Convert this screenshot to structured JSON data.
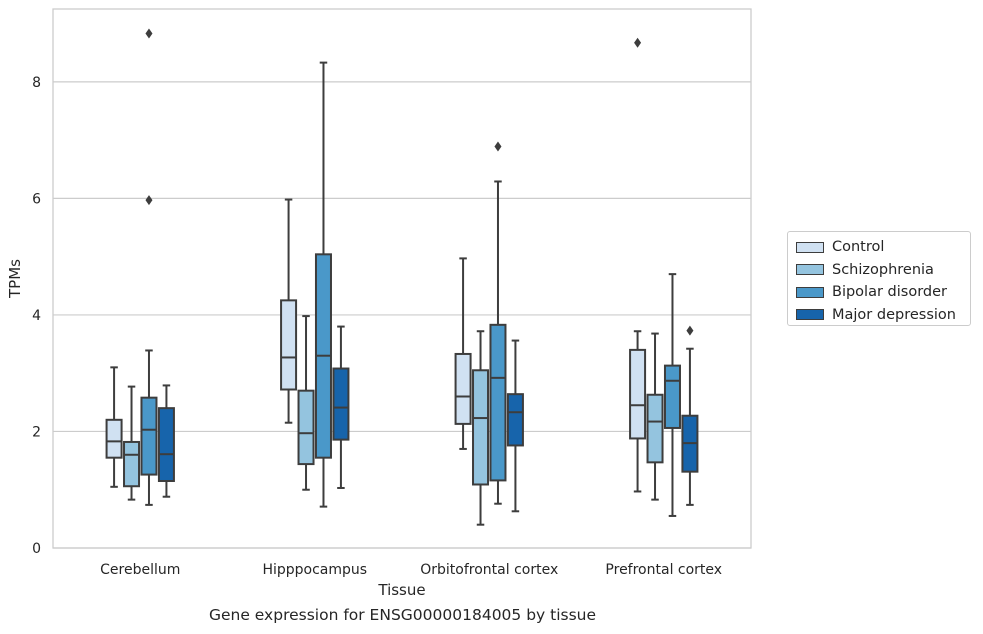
{
  "chart_data": {
    "type": "box",
    "title": "",
    "caption": "Gene expression for ENSG00000184005 by tissue",
    "xlabel": "Tissue",
    "ylabel": "TPMs",
    "ylim": [
      0,
      9.25
    ],
    "yticks": [
      0,
      2,
      4,
      6,
      8
    ],
    "grid": "horizontal",
    "legend_position": "right",
    "categories": [
      "Cerebellum",
      "Hipppocampus",
      "Orbitofrontal cortex",
      "Prefrontal cortex"
    ],
    "series": [
      {
        "name": "Control",
        "color": "#d0e1f2",
        "boxes": [
          {
            "whisker_low": 1.05,
            "q1": 1.55,
            "median": 1.83,
            "q3": 2.2,
            "whisker_high": 3.1,
            "outliers": []
          },
          {
            "whisker_low": 2.15,
            "q1": 2.72,
            "median": 3.27,
            "q3": 4.25,
            "whisker_high": 5.98,
            "outliers": []
          },
          {
            "whisker_low": 1.7,
            "q1": 2.13,
            "median": 2.6,
            "q3": 3.33,
            "whisker_high": 4.97,
            "outliers": []
          },
          {
            "whisker_low": 0.97,
            "q1": 1.88,
            "median": 2.45,
            "q3": 3.4,
            "whisker_high": 3.72,
            "outliers": [
              8.67
            ]
          }
        ]
      },
      {
        "name": "Schizophrenia",
        "color": "#94c4df",
        "boxes": [
          {
            "whisker_low": 0.83,
            "q1": 1.06,
            "median": 1.6,
            "q3": 1.82,
            "whisker_high": 2.77,
            "outliers": []
          },
          {
            "whisker_low": 1.0,
            "q1": 1.44,
            "median": 1.97,
            "q3": 2.7,
            "whisker_high": 3.98,
            "outliers": []
          },
          {
            "whisker_low": 0.4,
            "q1": 1.09,
            "median": 2.23,
            "q3": 3.05,
            "whisker_high": 3.72,
            "outliers": []
          },
          {
            "whisker_low": 0.83,
            "q1": 1.47,
            "median": 2.17,
            "q3": 2.63,
            "whisker_high": 3.68,
            "outliers": []
          }
        ]
      },
      {
        "name": "Bipolar disorder",
        "color": "#4a98c9",
        "boxes": [
          {
            "whisker_low": 0.74,
            "q1": 1.26,
            "median": 2.03,
            "q3": 2.58,
            "whisker_high": 3.39,
            "outliers": [
              5.97,
              8.83
            ]
          },
          {
            "whisker_low": 0.71,
            "q1": 1.55,
            "median": 3.3,
            "q3": 5.04,
            "whisker_high": 8.33,
            "outliers": []
          },
          {
            "whisker_low": 0.76,
            "q1": 1.16,
            "median": 2.92,
            "q3": 3.83,
            "whisker_high": 6.29,
            "outliers": [
              6.89
            ]
          },
          {
            "whisker_low": 0.55,
            "q1": 2.06,
            "median": 2.87,
            "q3": 3.13,
            "whisker_high": 4.7,
            "outliers": []
          }
        ]
      },
      {
        "name": "Major depression",
        "color": "#1764ab",
        "boxes": [
          {
            "whisker_low": 0.88,
            "q1": 1.15,
            "median": 1.61,
            "q3": 2.4,
            "whisker_high": 2.79,
            "outliers": []
          },
          {
            "whisker_low": 1.03,
            "q1": 1.86,
            "median": 2.41,
            "q3": 3.08,
            "whisker_high": 3.8,
            "outliers": []
          },
          {
            "whisker_low": 0.63,
            "q1": 1.76,
            "median": 2.33,
            "q3": 2.64,
            "whisker_high": 3.56,
            "outliers": []
          },
          {
            "whisker_low": 0.74,
            "q1": 1.31,
            "median": 1.8,
            "q3": 2.27,
            "whisker_high": 3.42,
            "outliers": [
              3.73
            ]
          }
        ]
      }
    ]
  }
}
